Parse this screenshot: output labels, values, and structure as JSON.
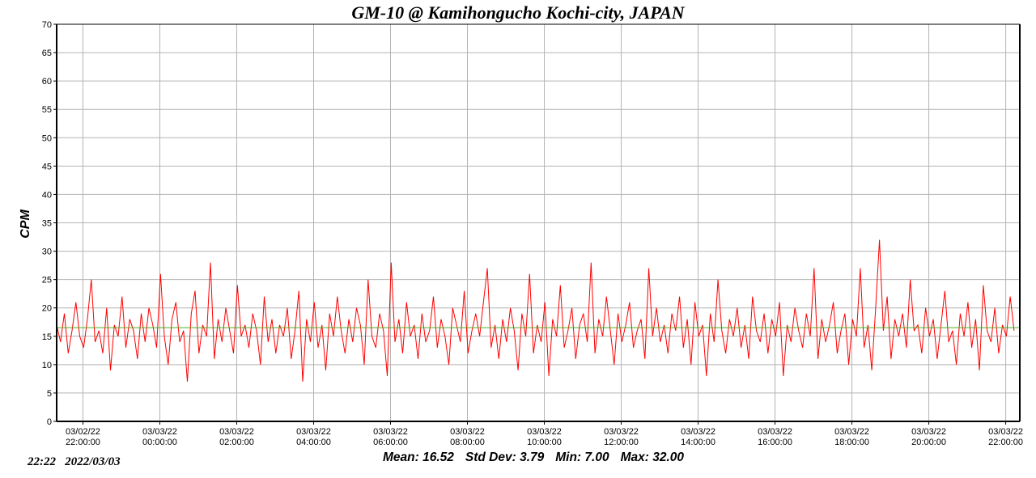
{
  "chart_data": {
    "type": "line",
    "title": "GM-10 @ Kamihongucho Kochi-city, JAPAN",
    "xlabel": "",
    "ylabel": "CPM",
    "ylim": [
      0,
      70
    ],
    "yticks": [
      0,
      5,
      10,
      15,
      20,
      25,
      30,
      35,
      40,
      45,
      50,
      55,
      60,
      65,
      70
    ],
    "x_start_minutes": -41,
    "x_end_minutes": 1462,
    "interval_minutes": 6,
    "xticks": [
      {
        "minutes": 0,
        "date": "03/02/22",
        "time": "22:00:00"
      },
      {
        "minutes": 120,
        "date": "03/03/22",
        "time": "00:00:00"
      },
      {
        "minutes": 240,
        "date": "03/03/22",
        "time": "02:00:00"
      },
      {
        "minutes": 360,
        "date": "03/03/22",
        "time": "04:00:00"
      },
      {
        "minutes": 480,
        "date": "03/03/22",
        "time": "06:00:00"
      },
      {
        "minutes": 600,
        "date": "03/03/22",
        "time": "08:00:00"
      },
      {
        "minutes": 720,
        "date": "03/03/22",
        "time": "10:00:00"
      },
      {
        "minutes": 840,
        "date": "03/03/22",
        "time": "12:00:00"
      },
      {
        "minutes": 960,
        "date": "03/03/22",
        "time": "14:00:00"
      },
      {
        "minutes": 1080,
        "date": "03/03/22",
        "time": "16:00:00"
      },
      {
        "minutes": 1200,
        "date": "03/03/22",
        "time": "18:00:00"
      },
      {
        "minutes": 1320,
        "date": "03/03/22",
        "time": "20:00:00"
      },
      {
        "minutes": 1440,
        "date": "03/03/22",
        "time": "22:00:00"
      }
    ],
    "grid": true,
    "series": [
      {
        "name": "CPM",
        "color": "#ff0000",
        "values": [
          17,
          14,
          19,
          12,
          16,
          21,
          15,
          13,
          18,
          25,
          14,
          16,
          12,
          20,
          9,
          17,
          15,
          22,
          13,
          18,
          16,
          11,
          19,
          14,
          20,
          17,
          13,
          26,
          15,
          10,
          18,
          21,
          14,
          16,
          7,
          19,
          23,
          12,
          17,
          15,
          28,
          11,
          18,
          14,
          20,
          16,
          12,
          24,
          15,
          17,
          13,
          19,
          16,
          10,
          22,
          14,
          18,
          12,
          17,
          15,
          20,
          11,
          16,
          23,
          7,
          18,
          14,
          21,
          13,
          17,
          9,
          19,
          15,
          22,
          16,
          12,
          18,
          14,
          20,
          17,
          10,
          25,
          15,
          13,
          19,
          16,
          8,
          28,
          14,
          18,
          12,
          21,
          15,
          17,
          11,
          19,
          14,
          16,
          22,
          13,
          18,
          15,
          10,
          20,
          17,
          14,
          23,
          12,
          16,
          19,
          15,
          21,
          27,
          13,
          17,
          11,
          18,
          14,
          20,
          16,
          9,
          19,
          15,
          26,
          12,
          17,
          14,
          21,
          8,
          18,
          15,
          24,
          13,
          16,
          20,
          11,
          17,
          19,
          14,
          28,
          12,
          18,
          15,
          22,
          16,
          10,
          19,
          14,
          17,
          21,
          13,
          16,
          18,
          11,
          27,
          15,
          20,
          14,
          17,
          12,
          19,
          16,
          22,
          13,
          18,
          10,
          21,
          15,
          17,
          8,
          19,
          14,
          25,
          16,
          12,
          18,
          15,
          20,
          13,
          17,
          11,
          22,
          16,
          14,
          19,
          12,
          18,
          15,
          21,
          8,
          17,
          14,
          20,
          16,
          13,
          19,
          15,
          27,
          11,
          18,
          14,
          17,
          21,
          12,
          16,
          19,
          10,
          18,
          15,
          27,
          13,
          17,
          9,
          20,
          32,
          16,
          22,
          11,
          18,
          15,
          19,
          13,
          25,
          16,
          17,
          12,
          20,
          15,
          18,
          11,
          17,
          23,
          14,
          16,
          10,
          19,
          15,
          21,
          13,
          18,
          9,
          24,
          16,
          14,
          20,
          12,
          17,
          15,
          22,
          16
        ]
      },
      {
        "name": "Mean",
        "color": "#4caf20",
        "constant": 16.52
      }
    ]
  },
  "footer": {
    "time": "22:22",
    "date": "2022/03/03"
  },
  "stats": {
    "mean": "Mean: 16.52",
    "std": "Std Dev: 3.79",
    "min": "Min: 7.00",
    "max": "Max: 32.00"
  }
}
